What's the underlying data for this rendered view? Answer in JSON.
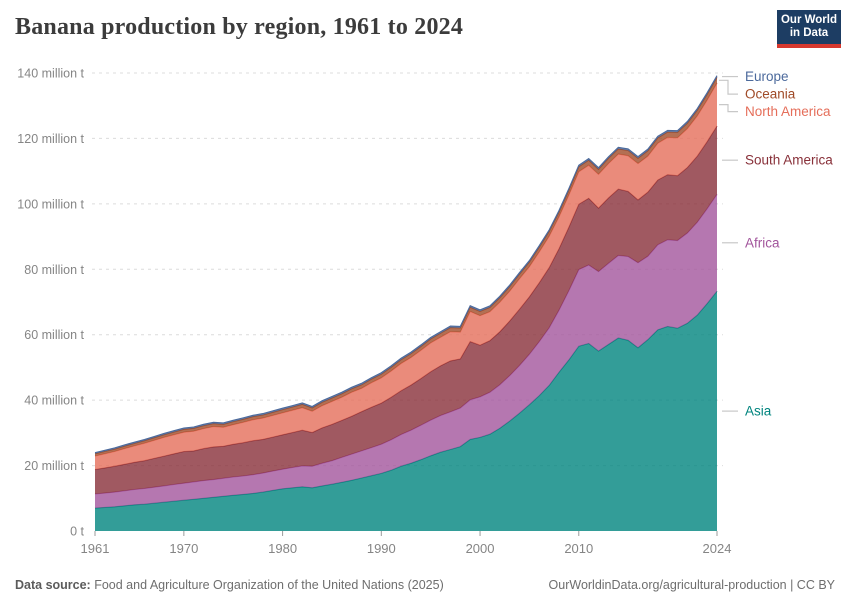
{
  "header": {
    "title": "Banana production by region, 1961 to 2024",
    "logo": {
      "line1": "Our World",
      "line2": "in Data"
    }
  },
  "chart_data": {
    "type": "area",
    "stacked": true,
    "title": "Banana production by region, 1961 to 2024",
    "unit": "million t",
    "ylim": [
      0,
      140
    ],
    "grid": "dashed-horizontal",
    "legend_position": "right",
    "x_ticks": [
      1961,
      1970,
      1980,
      1990,
      2000,
      2010,
      2024
    ],
    "y_ticks": [
      {
        "value": 0,
        "label": "0 t"
      },
      {
        "value": 20,
        "label": "20 million t"
      },
      {
        "value": 40,
        "label": "40 million t"
      },
      {
        "value": 60,
        "label": "60 million t"
      },
      {
        "value": 80,
        "label": "80 million t"
      },
      {
        "value": 100,
        "label": "100 million t"
      },
      {
        "value": 120,
        "label": "120 million t"
      },
      {
        "value": 140,
        "label": "140 million t"
      }
    ],
    "years": [
      1961,
      1962,
      1963,
      1964,
      1965,
      1966,
      1967,
      1968,
      1969,
      1970,
      1971,
      1972,
      1973,
      1974,
      1975,
      1976,
      1977,
      1978,
      1979,
      1980,
      1981,
      1982,
      1983,
      1984,
      1985,
      1986,
      1987,
      1988,
      1989,
      1990,
      1991,
      1992,
      1993,
      1994,
      1995,
      1996,
      1997,
      1998,
      1999,
      2000,
      2001,
      2002,
      2003,
      2004,
      2005,
      2006,
      2007,
      2008,
      2009,
      2010,
      2011,
      2012,
      2013,
      2014,
      2015,
      2016,
      2017,
      2018,
      2019,
      2020,
      2021,
      2022,
      2023,
      2024
    ],
    "series": [
      {
        "name": "Asia",
        "color": "#00847E",
        "values": [
          7.0,
          7.2,
          7.4,
          7.7,
          8.0,
          8.2,
          8.5,
          8.8,
          9.1,
          9.4,
          9.7,
          10.0,
          10.3,
          10.6,
          10.9,
          11.2,
          11.5,
          11.9,
          12.4,
          12.9,
          13.2,
          13.5,
          13.2,
          13.8,
          14.3,
          14.9,
          15.5,
          16.2,
          16.9,
          17.6,
          18.6,
          19.8,
          20.7,
          21.8,
          23.0,
          24.1,
          24.9,
          25.8,
          28.0,
          28.6,
          29.6,
          31.4,
          33.6,
          36.0,
          38.6,
          41.4,
          44.5,
          48.5,
          52.3,
          56.5,
          57.3,
          55.0,
          57.0,
          59.0,
          58.3,
          56.0,
          58.5,
          61.5,
          62.5,
          62.0,
          63.5,
          66.0,
          69.5,
          73.3
        ]
      },
      {
        "name": "Africa",
        "color": "#A2559C",
        "values": [
          4.3,
          4.4,
          4.5,
          4.6,
          4.7,
          4.8,
          4.9,
          5.0,
          5.1,
          5.2,
          5.3,
          5.4,
          5.4,
          5.5,
          5.6,
          5.6,
          5.7,
          5.8,
          5.9,
          6.0,
          6.2,
          6.4,
          6.6,
          6.9,
          7.2,
          7.6,
          8.0,
          8.3,
          8.6,
          8.9,
          9.3,
          9.7,
          10.1,
          10.5,
          10.9,
          11.2,
          11.5,
          11.8,
          12.1,
          12.4,
          12.8,
          13.3,
          13.9,
          14.6,
          15.4,
          16.5,
          17.6,
          19.0,
          21.2,
          23.4,
          24.0,
          24.3,
          24.8,
          25.2,
          25.6,
          26.0,
          25.5,
          26.0,
          26.5,
          26.8,
          27.6,
          28.4,
          29.0,
          29.6
        ]
      },
      {
        "name": "South America",
        "color": "#883039",
        "values": [
          7.5,
          7.7,
          7.9,
          8.1,
          8.3,
          8.5,
          8.8,
          9.1,
          9.4,
          9.7,
          9.5,
          9.8,
          10.0,
          9.8,
          10.0,
          10.2,
          10.4,
          10.3,
          10.4,
          10.5,
          10.7,
          10.9,
          10.3,
          10.8,
          11.1,
          11.3,
          11.6,
          12.0,
          12.3,
          12.6,
          13.0,
          13.4,
          13.8,
          14.3,
          14.8,
          15.2,
          15.6,
          15.0,
          17.8,
          15.8,
          15.8,
          16.2,
          16.7,
          17.2,
          17.6,
          18.0,
          18.4,
          18.8,
          19.4,
          20.0,
          20.4,
          19.4,
          20.0,
          20.3,
          19.9,
          19.2,
          19.6,
          19.8,
          19.9,
          19.8,
          20.0,
          20.2,
          20.5,
          20.9
        ]
      },
      {
        "name": "North America",
        "color": "#E56E5A",
        "values": [
          4.1,
          4.3,
          4.5,
          4.8,
          5.0,
          5.3,
          5.5,
          5.7,
          5.8,
          5.9,
          6.0,
          6.1,
          6.2,
          5.8,
          6.0,
          6.2,
          6.4,
          6.5,
          6.6,
          6.7,
          6.8,
          6.9,
          6.5,
          6.8,
          7.0,
          7.1,
          7.3,
          7.1,
          7.5,
          7.7,
          8.0,
          8.3,
          8.4,
          8.6,
          8.8,
          8.7,
          8.9,
          8.2,
          9.2,
          9.0,
          8.8,
          9.0,
          9.1,
          9.3,
          9.2,
          9.4,
          9.6,
          9.7,
          9.8,
          9.9,
          10.1,
          10.3,
          10.5,
          10.7,
          10.9,
          11.1,
          11.0,
          11.2,
          11.4,
          11.6,
          11.9,
          12.3,
          12.7,
          13.1
        ]
      },
      {
        "name": "Oceania",
        "color": "#A04B28",
        "values": [
          0.7,
          0.72,
          0.74,
          0.76,
          0.78,
          0.8,
          0.82,
          0.84,
          0.86,
          0.88,
          0.9,
          0.91,
          0.92,
          0.93,
          0.94,
          0.95,
          0.96,
          0.97,
          0.98,
          1.0,
          1.01,
          1.02,
          1.03,
          1.05,
          1.06,
          1.08,
          1.09,
          1.1,
          1.12,
          1.13,
          1.15,
          1.17,
          1.19,
          1.21,
          1.23,
          1.25,
          1.27,
          1.29,
          1.31,
          1.33,
          1.35,
          1.37,
          1.39,
          1.41,
          1.43,
          1.45,
          1.47,
          1.49,
          1.51,
          1.53,
          1.55,
          1.56,
          1.58,
          1.6,
          1.61,
          1.62,
          1.64,
          1.65,
          1.66,
          1.68,
          1.7,
          1.72,
          1.74,
          1.76
        ]
      },
      {
        "name": "Europe",
        "color": "#4C6A9C",
        "values": [
          0.35,
          0.35,
          0.36,
          0.36,
          0.37,
          0.37,
          0.38,
          0.38,
          0.39,
          0.39,
          0.4,
          0.4,
          0.4,
          0.41,
          0.41,
          0.41,
          0.42,
          0.42,
          0.42,
          0.43,
          0.43,
          0.43,
          0.43,
          0.44,
          0.44,
          0.44,
          0.44,
          0.45,
          0.45,
          0.45,
          0.45,
          0.45,
          0.46,
          0.46,
          0.46,
          0.46,
          0.46,
          0.46,
          0.47,
          0.47,
          0.47,
          0.47,
          0.47,
          0.47,
          0.47,
          0.48,
          0.48,
          0.48,
          0.48,
          0.48,
          0.48,
          0.48,
          0.48,
          0.49,
          0.49,
          0.49,
          0.49,
          0.49,
          0.49,
          0.49,
          0.5,
          0.5,
          0.5,
          0.5
        ]
      }
    ]
  },
  "footer": {
    "source_label": "Data source:",
    "source_text": "Food and Agriculture Organization of the United Nations (2025)",
    "credit_text": "OurWorldinData.org/agricultural-production | CC BY"
  }
}
